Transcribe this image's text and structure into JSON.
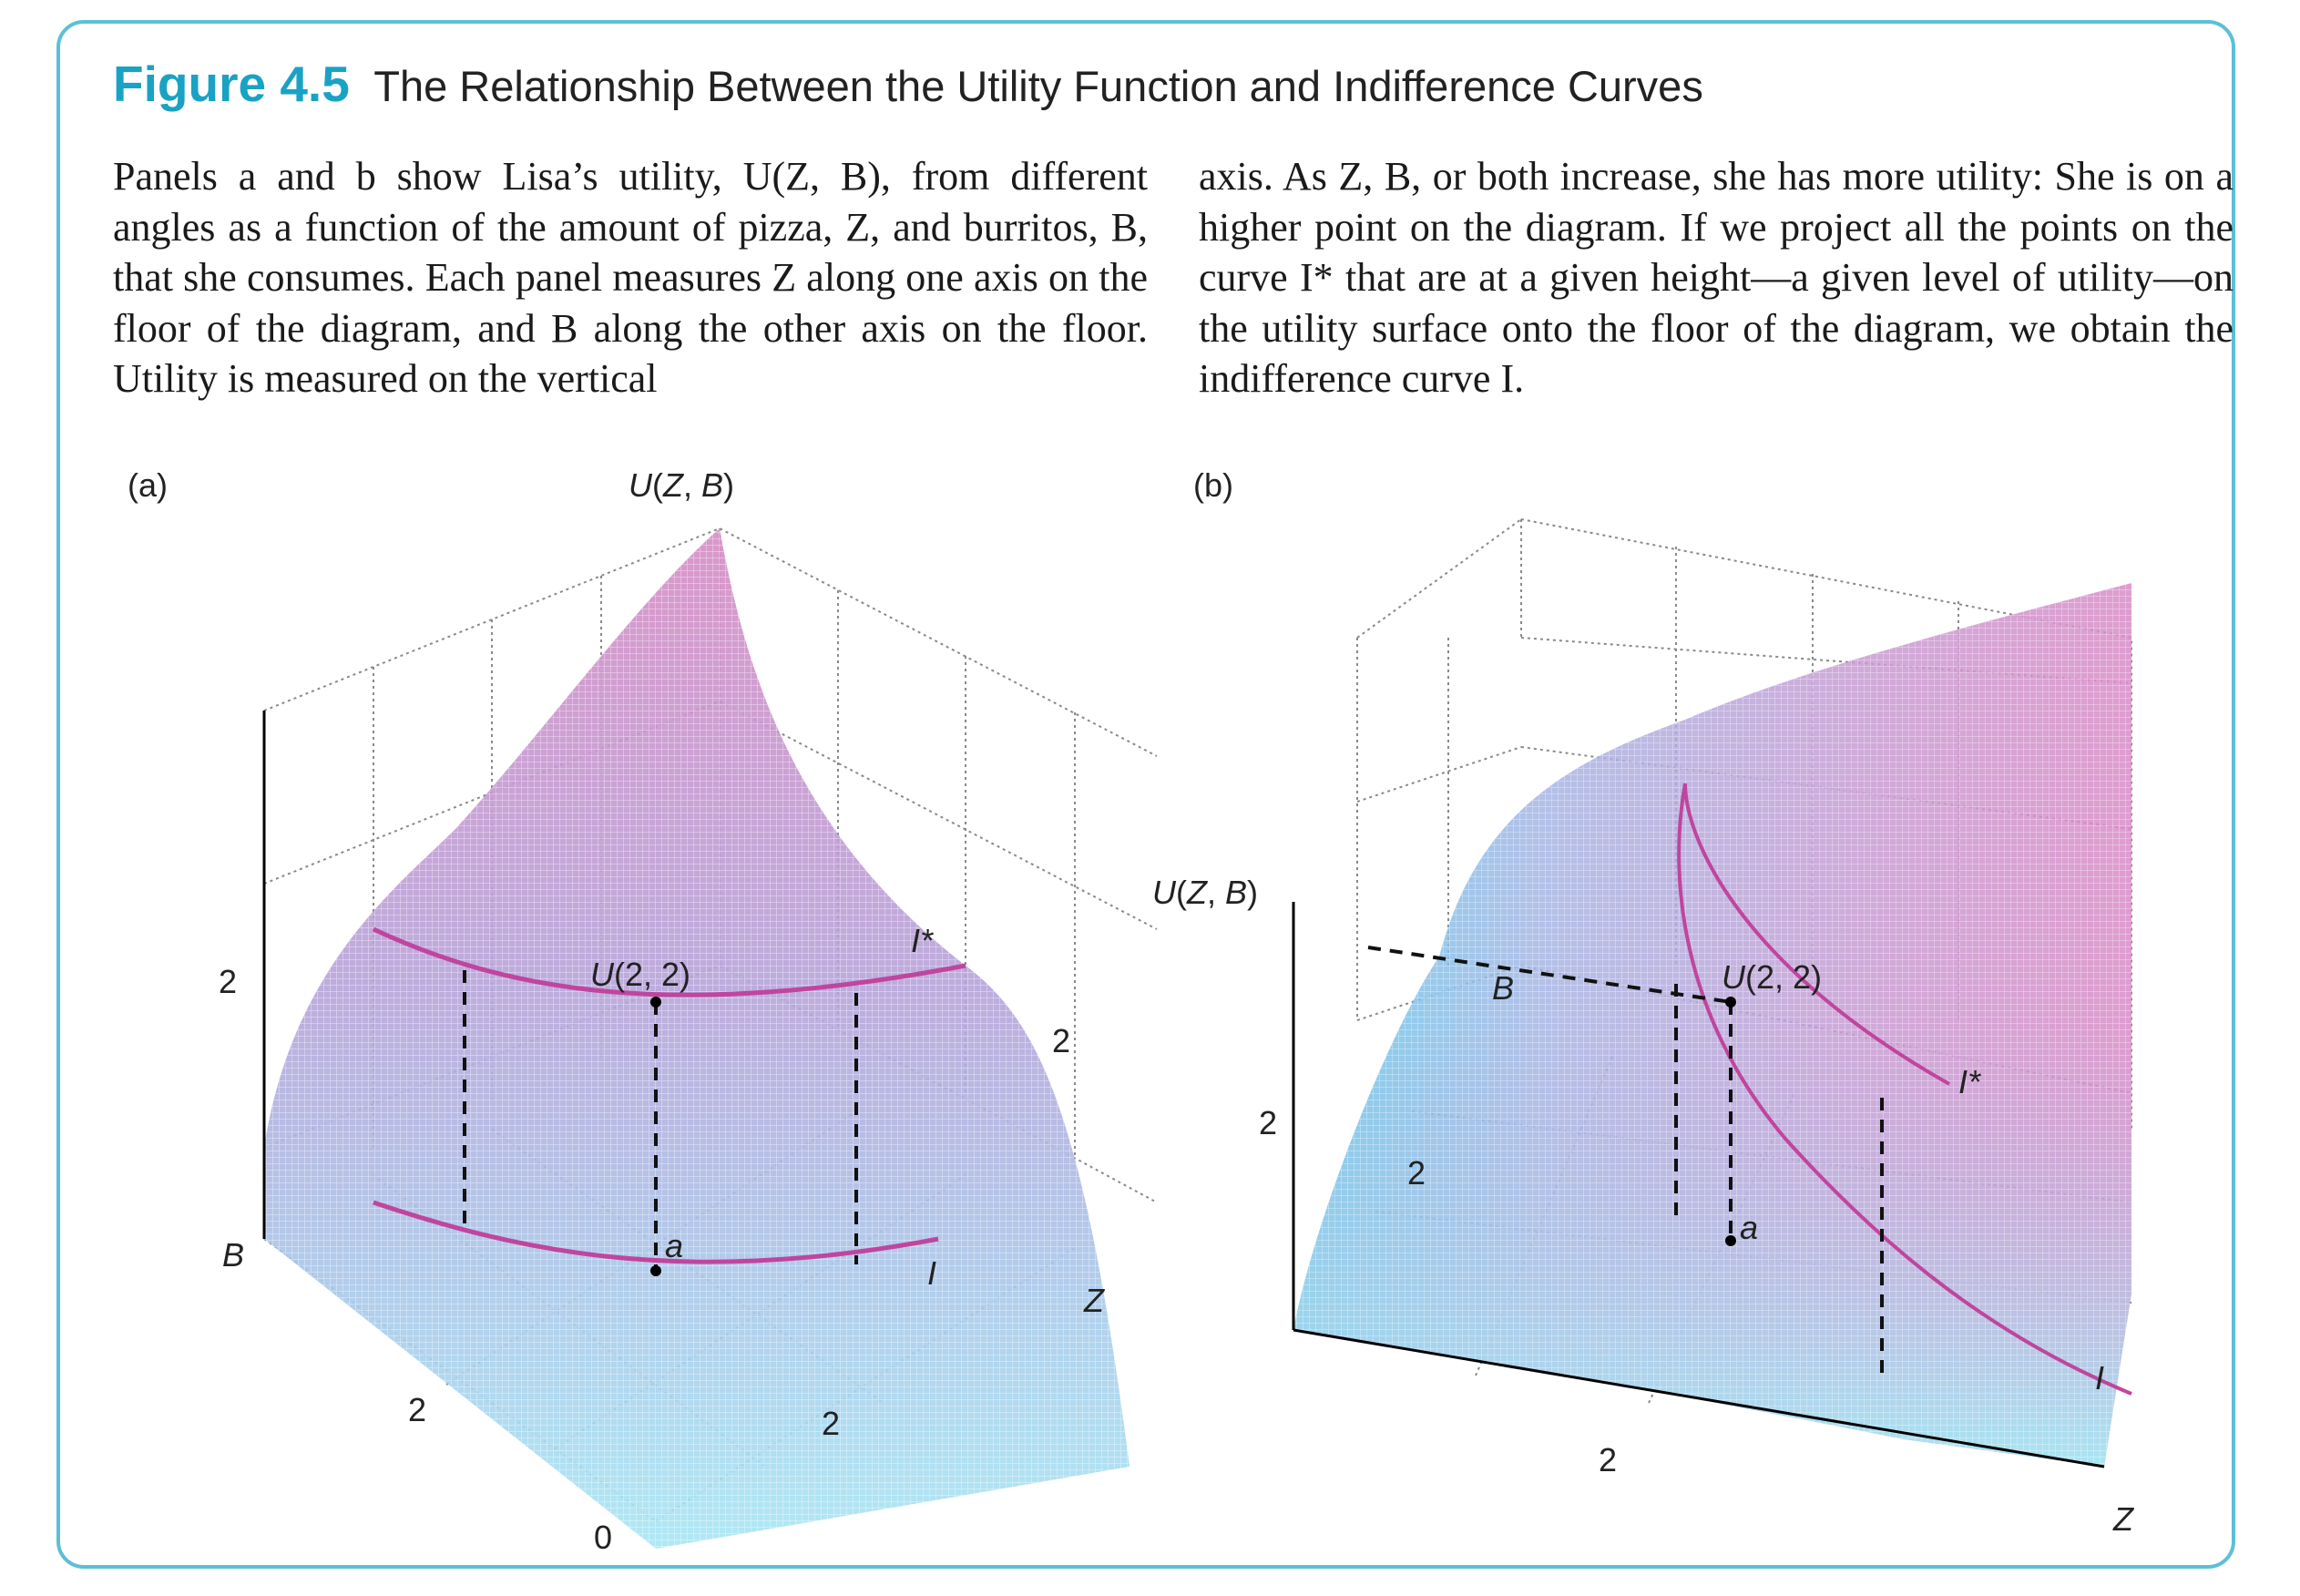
{
  "figure": {
    "number": "Figure 4.5",
    "title": "The Relationship Between the Utility Function and Indifference Curves",
    "frame_color": "#5bc0d6",
    "number_color": "#1aa2c4"
  },
  "caption": {
    "left_column": "Panels a and b show Lisa’s utility, U(Z, B), from different angles as a function of the amount of pizza, Z, and burritos, B, that she consumes. Each panel measures Z along one axis on the floor of the diagram, and B along the other axis on the floor. Utility is measured on the vertical",
    "right_column": "axis. As Z, B, or both increase, she has more utility: She is on a higher point on the diagram. If we project all the points on the curve I* that are at a given height—a given level of utility—on the utility surface onto the floor of the diagram, we obtain the indifference curve I."
  },
  "panel_a": {
    "panel_label": "(a)",
    "vertical_axis_label": "U(Z, B)",
    "tick_vertical": "2",
    "tick_right": "2",
    "tick_B_floor": "2",
    "tick_Z_floor": "2",
    "origin_label": "0",
    "axis_B": "B",
    "axis_Z": "Z",
    "point_upper_label": "U(2, 2)",
    "point_lower_label": "a",
    "curve_upper_label": "I*",
    "curve_lower_label": "I"
  },
  "panel_b": {
    "panel_label": "(b)",
    "vertical_axis_label": "U(Z, B)",
    "tick_vertical": "2",
    "tick_B_floor": "2",
    "tick_Z_floor": "2",
    "axis_B": "B",
    "axis_Z": "Z",
    "point_upper_label": "U(2, 2)",
    "point_lower_label": "a",
    "curve_upper_label": "I*",
    "curve_lower_label": "I"
  },
  "colors": {
    "surface_top": "#d98bc7",
    "surface_mid": "#b7a6dc",
    "surface_bottom": "#8fdcef",
    "curve": "#c0459e"
  }
}
